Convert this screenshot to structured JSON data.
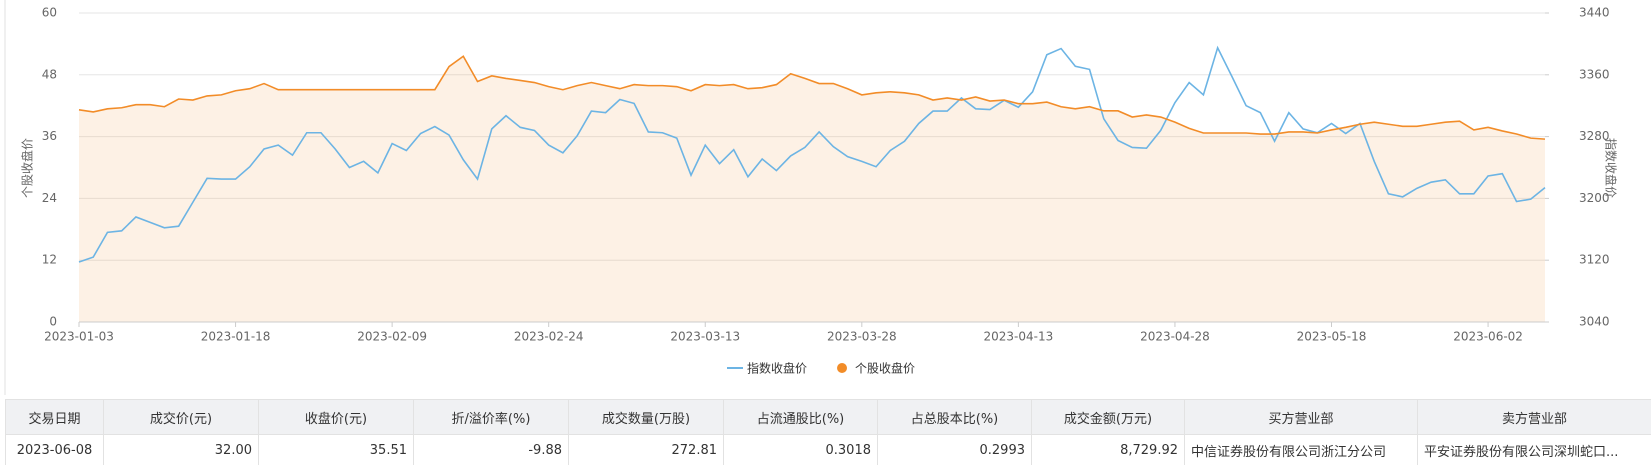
{
  "chart_data": {
    "type": "line",
    "ylabel": "个股收盘价",
    "y2label": "指数收盘价",
    "categories": [
      "2023-01-03",
      null,
      null,
      null,
      null,
      null,
      null,
      null,
      null,
      null,
      null,
      "2023-01-18",
      null,
      null,
      null,
      null,
      null,
      null,
      null,
      null,
      null,
      null,
      "2023-02-09",
      null,
      null,
      null,
      null,
      null,
      null,
      null,
      null,
      null,
      null,
      "2023-02-24",
      null,
      null,
      null,
      null,
      null,
      null,
      null,
      null,
      null,
      null,
      "2023-03-13",
      null,
      null,
      null,
      null,
      null,
      null,
      null,
      null,
      null,
      null,
      "2023-03-28",
      null,
      null,
      null,
      null,
      null,
      null,
      null,
      null,
      null,
      null,
      "2023-04-13",
      null,
      null,
      null,
      null,
      null,
      null,
      null,
      null,
      null,
      null,
      "2023-04-28",
      null,
      null,
      null,
      null,
      null,
      null,
      null,
      null,
      null,
      null,
      "2023-05-18",
      null,
      null,
      null,
      null,
      null,
      null,
      null,
      null,
      null,
      null,
      "2023-06-02",
      null,
      null,
      null,
      null
    ],
    "series": [
      {
        "name": "指数收盘价",
        "color": "#6cb4e4",
        "axis": "y2",
        "values": [
          3117.6,
          3124,
          3156,
          3158,
          3176,
          3169,
          3162,
          3164,
          3195,
          3226,
          3225,
          3225,
          3241,
          3264,
          3269,
          3256,
          3285,
          3285,
          3264,
          3240,
          3248,
          3233,
          3271,
          3262,
          3284,
          3293,
          3282,
          3250,
          3225,
          3290,
          3307,
          3292,
          3288,
          3269,
          3259,
          3281,
          3313,
          3311,
          3328,
          3323,
          3286,
          3285,
          3278,
          3230,
          3269,
          3245,
          3263,
          3228,
          3251,
          3236,
          3255,
          3266,
          3286,
          3267,
          3254,
          3248,
          3241,
          3262,
          3274,
          3297,
          3313,
          3313,
          3330,
          3316,
          3315,
          3327,
          3318,
          3338,
          3386,
          3394,
          3371,
          3367,
          3303,
          3275,
          3266,
          3265,
          3288,
          3324,
          3350,
          3334,
          3395,
          3358,
          3320,
          3311,
          3274,
          3311,
          3290,
          3285,
          3297,
          3284,
          3297,
          3248,
          3206,
          3202,
          3213,
          3221,
          3224,
          3206,
          3206,
          3229,
          3232,
          3196,
          3199,
          3214
        ]
      },
      {
        "name": "个股收盘价",
        "color": "#f28c28",
        "area": true,
        "values": [
          41.2,
          40.8,
          41.4,
          41.6,
          42.2,
          42.2,
          41.8,
          43.3,
          43.1,
          43.9,
          44.1,
          44.9,
          45.3,
          46.3,
          45.1,
          45.1,
          45.1,
          45.1,
          45.1,
          45.1,
          45.1,
          45.1,
          45.1,
          45.1,
          45.1,
          45.1,
          49.6,
          51.6,
          46.7,
          47.8,
          47.3,
          46.9,
          46.5,
          45.7,
          45.1,
          45.9,
          46.5,
          45.9,
          45.3,
          46.1,
          45.9,
          45.9,
          45.7,
          44.9,
          46.1,
          45.9,
          46.1,
          45.3,
          45.5,
          46.1,
          48.2,
          47.3,
          46.3,
          46.3,
          45.3,
          44.1,
          44.5,
          44.7,
          44.5,
          44.1,
          43.1,
          43.5,
          43.1,
          43.7,
          42.9,
          43.1,
          42.4,
          42.4,
          42.7,
          41.8,
          41.4,
          41.8,
          41,
          41,
          39.8,
          40.2,
          39.8,
          38.8,
          37.6,
          36.7,
          36.7,
          36.7,
          36.7,
          36.5,
          36.5,
          36.9,
          36.9,
          36.7,
          37.3,
          37.8,
          38.4,
          38.8,
          38.4,
          38,
          38,
          38.4,
          38.8,
          39,
          37.3,
          37.8,
          37.1,
          36.5,
          35.7,
          35.51
        ]
      }
    ],
    "ylim": [
      0,
      60
    ],
    "yticks": [
      0,
      12,
      24,
      36,
      48,
      60
    ],
    "y2lim": [
      3040,
      3440
    ],
    "y2ticks": [
      3040,
      3120,
      3200,
      3280,
      3360,
      3440
    ],
    "grid": true,
    "legend": "bottom"
  },
  "table": {
    "headers": [
      "交易日期",
      "成交价(元)",
      "收盘价(元)",
      "折/溢价率(%)",
      "成交数量(万股)",
      "占流通股比(%)",
      "占总股本比(%)",
      "成交金额(万元)",
      "买方营业部",
      "卖方营业部"
    ],
    "rows": [
      [
        "2023-06-08",
        "32.00",
        "35.51",
        "-9.88",
        "272.81",
        "0.3018",
        "0.2993",
        "8,729.92",
        "中信证券股份有限公司浙江分公司",
        "平安证券股份有限公司深圳蛇口..."
      ]
    ]
  }
}
